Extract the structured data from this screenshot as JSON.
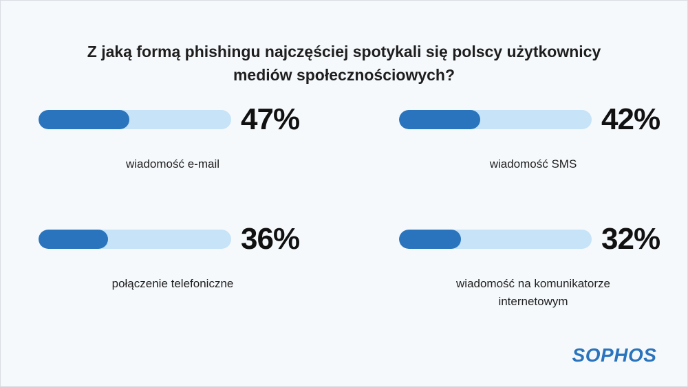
{
  "title": {
    "line1": "Z jaką formą phishingu najczęściej spotykali się polscy użytkownicy",
    "line2": "mediów społecznościowych?"
  },
  "colors": {
    "fill": "#2a74bd",
    "track": "#c6e3f8",
    "text": "#1e1e1e",
    "logo": "#2a74bd"
  },
  "logo": "SOPHOS",
  "chart_data": {
    "type": "bar",
    "categories": [
      "wiadomość e-mail",
      "wiadomość SMS",
      "połączenie telefoniczne",
      "wiadomość na komunikatorze internetowym"
    ],
    "values": [
      47,
      42,
      36,
      32
    ],
    "value_labels": [
      "47%",
      "42%",
      "36%",
      "32%"
    ],
    "ylim": [
      0,
      100
    ],
    "unit": "%"
  }
}
